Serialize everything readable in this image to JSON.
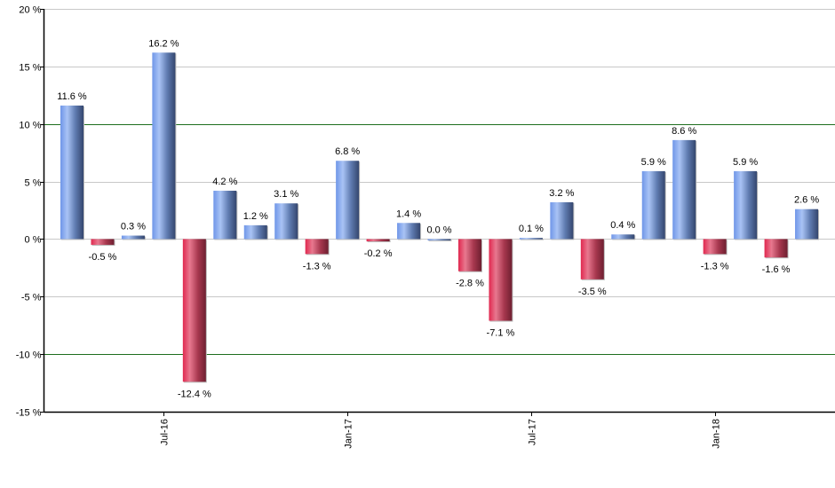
{
  "chart_data": {
    "type": "bar",
    "title": "",
    "xlabel": "",
    "ylabel": "",
    "ylim": [
      -15,
      20
    ],
    "y_ticks": [
      -15,
      -10,
      -5,
      0,
      5,
      10,
      15,
      20
    ],
    "y_tick_labels": [
      "-15 %",
      "-10 %",
      "-5 %",
      "0 %",
      "5 %",
      "10 %",
      "15 %",
      "20 %"
    ],
    "x_tick_labels": [
      {
        "index": 3,
        "label": "Jul-16"
      },
      {
        "index": 9,
        "label": "Jan-17"
      },
      {
        "index": 15,
        "label": "Jul-17"
      },
      {
        "index": 21,
        "label": "Jan-18"
      }
    ],
    "values": [
      11.6,
      -0.5,
      0.3,
      16.2,
      -12.4,
      4.2,
      1.2,
      3.1,
      -1.3,
      6.8,
      -0.2,
      1.4,
      0.0,
      -2.8,
      -7.1,
      0.1,
      3.2,
      -3.5,
      0.4,
      5.9,
      8.6,
      -1.3,
      5.9,
      -1.6,
      2.6
    ],
    "data_labels": [
      "11.6 %",
      "-0.5 %",
      "0.3 %",
      "16.2 %",
      "-12.4 %",
      "4.2 %",
      "1.2 %",
      "3.1 %",
      "-1.3 %",
      "6.8 %",
      "-0.2 %",
      "1.4 %",
      "0.0 %",
      "-2.8 %",
      "-7.1 %",
      "0.1 %",
      "3.2 %",
      "-3.5 %",
      "0.4 %",
      "5.9 %",
      "8.6 %",
      "-1.3 %",
      "5.9 %",
      "-1.6 %",
      "2.6 %"
    ],
    "grid": true,
    "highlight_gridlines": [
      -10,
      10
    ],
    "colors": {
      "positive": "#7a9ee6",
      "positive_dark": "#34466e",
      "negative": "#e0284f",
      "negative_dark": "#6e1f30",
      "grid": "#c8c8c8",
      "highlight_grid": "#1e6e1e"
    }
  }
}
